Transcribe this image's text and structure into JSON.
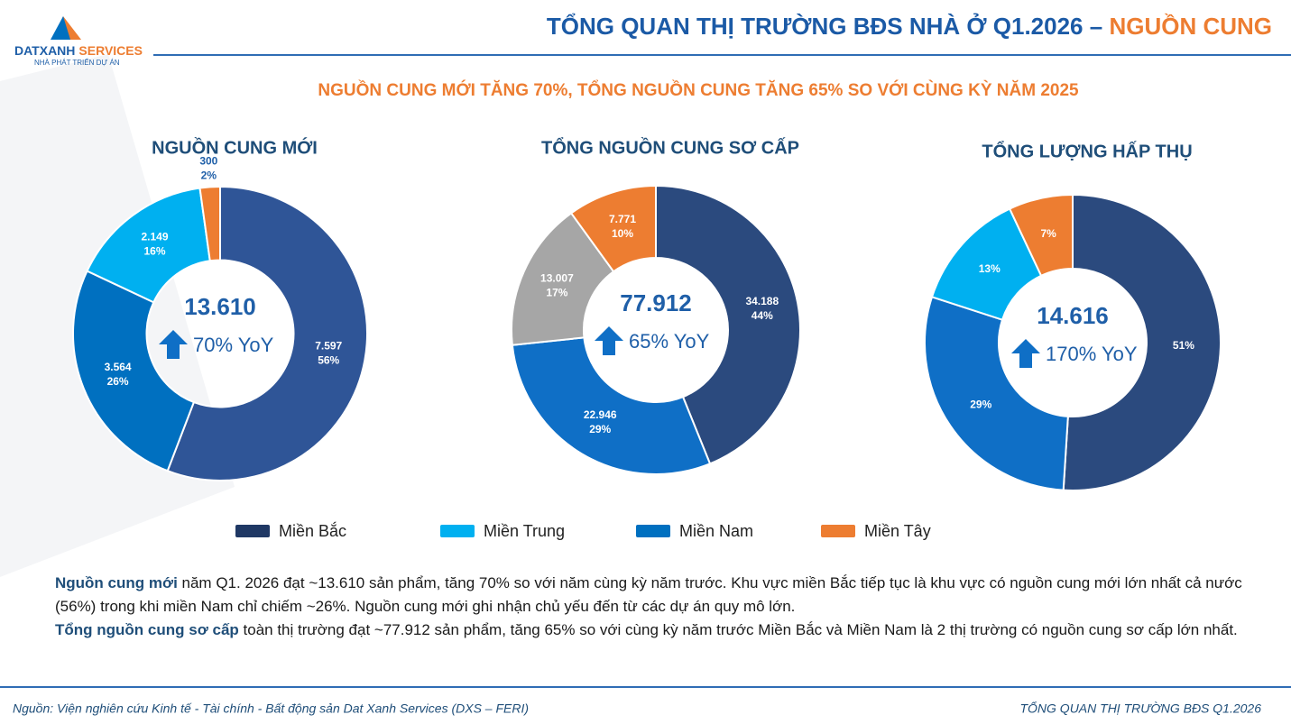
{
  "header": {
    "logo_brand": "DATXANH",
    "logo_brand_accent": "SERVICES",
    "logo_tagline": "NHÀ PHÁT TRIỂN DỰ ÁN",
    "title": "TỔNG QUAN THỊ TRƯỜNG BĐS NHÀ Ở Q1.2026 – ",
    "title_highlight": "NGUỒN CUNG"
  },
  "subtitle": "NGUỒN CUNG MỚI TĂNG 70%, TỔNG NGUỒN CUNG TĂNG 65% SO VỚI CÙNG KỲ NĂM 2025",
  "chart_data": [
    {
      "type": "donut",
      "title": "NGUỒN CUNG MỚI",
      "categories": [
        "Miền Bắc",
        "Miền Nam",
        "Miền Trung",
        "Miền Tây"
      ],
      "values": [
        7597,
        3564,
        2149,
        300
      ],
      "value_labels": [
        "7.597",
        "3.564",
        "2.149",
        "300"
      ],
      "percent_labels": [
        "56%",
        "26%",
        "16%",
        "2%"
      ],
      "colors": [
        "#2f5597",
        "#0070c0",
        "#00b0f0",
        "#ed7d31"
      ],
      "center_value": "13.610",
      "center_change": "70% YoY"
    },
    {
      "type": "donut",
      "title": "TỔNG NGUỒN CUNG SƠ CẤP",
      "categories": [
        "Miền Bắc",
        "Miền Nam",
        null,
        "Miền Tây"
      ],
      "values": [
        34188,
        22946,
        13007,
        7771
      ],
      "value_labels": [
        "34.188",
        "22.946",
        "13.007",
        "7.771"
      ],
      "percent_labels": [
        "44%",
        "29%",
        "17%",
        "10%"
      ],
      "colors": [
        "#2b4a7e",
        "#0f6fc6",
        "#a6a6a6",
        "#ed7d31"
      ],
      "center_value": "77.912",
      "center_change": "65% YoY"
    },
    {
      "type": "donut",
      "title": "TỔNG LƯỢNG HẤP THỤ",
      "categories": [
        "Miền Bắc",
        "Miền Nam",
        "Miền Trung",
        "Miền Tây"
      ],
      "values": [
        51,
        29,
        13,
        7
      ],
      "value_labels": [
        "51%",
        "29%",
        "13%",
        "7%"
      ],
      "colors": [
        "#2b4a7e",
        "#0f6fc6",
        "#00b0f0",
        "#ed7d31"
      ],
      "center_value": "14.616",
      "center_change": "170% YoY"
    }
  ],
  "legend": [
    {
      "name": "Miền Bắc",
      "color": "#1f3864"
    },
    {
      "name": "Miền Trung",
      "color": "#00b0f0"
    },
    {
      "name": "Miền Nam",
      "color": "#0070c0"
    },
    {
      "name": "Miền Tây",
      "color": "#ed7d31"
    }
  ],
  "notes": [
    {
      "lead": "Nguồn cung mới",
      "text": " năm Q1. 2026 đạt ~13.610 sản phẩm, tăng 70% so với năm cùng kỳ năm trước. Khu vực miền Bắc tiếp tục là khu vực có nguồn cung mới lớn nhất cả nước (56%) trong khi miền Nam chỉ chiếm ~26%. Nguồn cung mới ghi nhận chủ yếu đến từ các dự án quy mô lớn."
    },
    {
      "lead": "Tổng nguồn cung sơ cấp",
      "text": " toàn thị trường đạt ~77.912 sản phẩm, tăng 65% so với cùng kỳ năm trước Miền Bắc và Miền Nam là 2 thị trường có nguồn cung sơ cấp lớn nhất."
    }
  ],
  "footer": {
    "source": "Nguồn: Viện nghiên cứu Kinh tế - Tài chính - Bất động sản Dat Xanh Services (DXS – FERI)",
    "right": "TỔNG QUAN THỊ TRƯỜNG BĐS Q1.2026"
  }
}
